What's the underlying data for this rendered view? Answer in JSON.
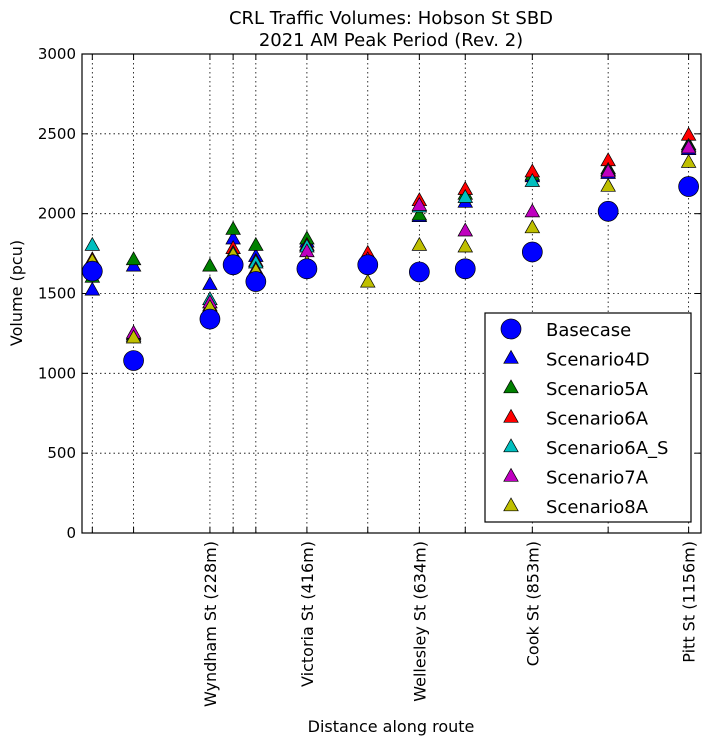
{
  "chart_data": {
    "type": "scatter",
    "title": "CRL Traffic Volumes: Hobson St SBD",
    "subtitle": "2021 AM Peak Period (Rev. 2)",
    "xlabel": "Distance along route",
    "ylabel": "Volume (pcu)",
    "ylim": [
      0,
      3000
    ],
    "yticks": [
      0,
      500,
      1000,
      1500,
      2000,
      2500,
      3000
    ],
    "grid": true,
    "legend_position": "lower-right",
    "x_positions_m": [
      0,
      80,
      228,
      273,
      317,
      416,
      534,
      634,
      723,
      853,
      1000,
      1156
    ],
    "xlim": [
      -20,
      1180
    ],
    "x_tick_labels": [
      {
        "x": 228,
        "label": "Wyndham St (228m)"
      },
      {
        "x": 416,
        "label": "Victoria St (416m)"
      },
      {
        "x": 634,
        "label": "Wellesley St (634m)"
      },
      {
        "x": 853,
        "label": "Cook St (853m)"
      },
      {
        "x": 1156,
        "label": "Pitt St (1156m)"
      }
    ],
    "series": [
      {
        "name": "Basecase",
        "marker": "circle",
        "color": "#0000ff",
        "values": [
          1640,
          1080,
          1340,
          1680,
          1575,
          1655,
          1680,
          1635,
          1655,
          1760,
          2015,
          2170
        ]
      },
      {
        "name": "Scenario4D",
        "marker": "triangle",
        "color": "#0000ff",
        "values": [
          1520,
          1670,
          1555,
          1840,
          1730,
          1820,
          1710,
          1980,
          2070,
          2230,
          2250,
          2400
        ]
      },
      {
        "name": "Scenario5A",
        "marker": "triangle",
        "color": "#008000",
        "values": [
          1600,
          1710,
          1670,
          1900,
          1800,
          1840,
          1740,
          1990,
          2120,
          2240,
          2280,
          2430
        ]
      },
      {
        "name": "Scenario6A",
        "marker": "triangle",
        "color": "#ff0000",
        "values": [
          1710,
          1240,
          1420,
          1780,
          1700,
          1800,
          1750,
          2080,
          2150,
          2260,
          2330,
          2490
        ]
      },
      {
        "name": "Scenario6A_S",
        "marker": "triangle",
        "color": "#00bfbf",
        "values": [
          1800,
          1230,
          1460,
          1750,
          1690,
          1790,
          1700,
          2040,
          2100,
          2200,
          2270,
          2420
        ]
      },
      {
        "name": "Scenario7A",
        "marker": "triangle",
        "color": "#bf00bf",
        "values": [
          1680,
          1250,
          1440,
          1710,
          1650,
          1760,
          1710,
          2050,
          1890,
          2010,
          2260,
          2410
        ]
      },
      {
        "name": "Scenario8A",
        "marker": "triangle",
        "color": "#bfbf00",
        "values": [
          1700,
          1220,
          1410,
          1740,
          1640,
          1690,
          1570,
          1800,
          1790,
          1910,
          2170,
          2320
        ]
      }
    ]
  }
}
